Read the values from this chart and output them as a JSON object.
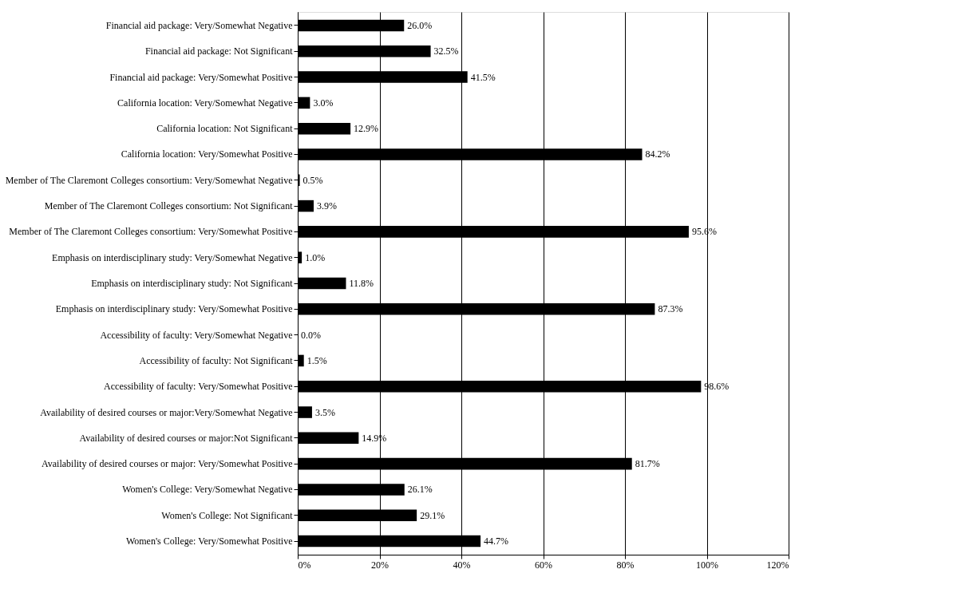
{
  "chart_data": {
    "type": "bar",
    "orientation": "horizontal",
    "categories": [
      "Financial aid package: Very/Somewhat Negative",
      "Financial aid package: Not Significant",
      "Financial aid package: Very/Somewhat Positive",
      "California location: Very/Somewhat Negative",
      "California location: Not Significant",
      "California location: Very/Somewhat Positive",
      "Member of The Claremont Colleges consortium: Very/Somewhat Negative",
      "Member of The Claremont Colleges consortium: Not Significant",
      "Member of The Claremont Colleges consortium: Very/Somewhat Positive",
      "Emphasis on interdisciplinary study: Very/Somewhat Negative",
      "Emphasis on interdisciplinary study: Not Significant",
      "Emphasis on interdisciplinary study: Very/Somewhat Positive",
      "Accessibility of faculty: Very/Somewhat Negative",
      "Accessibility of faculty: Not Significant",
      "Accessibility of faculty: Very/Somewhat Positive",
      "Availability of desired courses or major:Very/Somewhat Negative",
      "Availability of desired courses or major:Not Significant",
      "Availability of desired courses or major: Very/Somewhat Positive",
      "Women's College: Very/Somewhat Negative",
      "Women's College: Not Significant",
      "Women's College: Very/Somewhat Positive"
    ],
    "values": [
      26.0,
      32.5,
      41.5,
      3.0,
      12.9,
      84.2,
      0.5,
      3.9,
      95.6,
      1.0,
      11.8,
      87.3,
      0.0,
      1.5,
      98.6,
      3.5,
      14.9,
      81.7,
      26.1,
      29.1,
      44.7
    ],
    "value_labels": [
      "26.0%",
      "32.5%",
      "41.5%",
      "3.0%",
      "12.9%",
      "84.2%",
      "0.5%",
      "3.9%",
      "95.6%",
      "1.0%",
      "11.8%",
      "87.3%",
      "0.0%",
      "1.5%",
      "98.6%",
      "3.5%",
      "14.9%",
      "81.7%",
      "26.1%",
      "29.1%",
      "44.7%"
    ],
    "color": "#000000",
    "xlim": [
      0,
      120
    ],
    "xticks": [
      {
        "value": 0,
        "label": "0%"
      },
      {
        "value": 20,
        "label": "20%"
      },
      {
        "value": 40,
        "label": "40%"
      },
      {
        "value": 60,
        "label": "60%"
      },
      {
        "value": 80,
        "label": "80%"
      },
      {
        "value": 100,
        "label": "100%"
      },
      {
        "value": 120,
        "label": "120%"
      }
    ],
    "grid": "x"
  }
}
